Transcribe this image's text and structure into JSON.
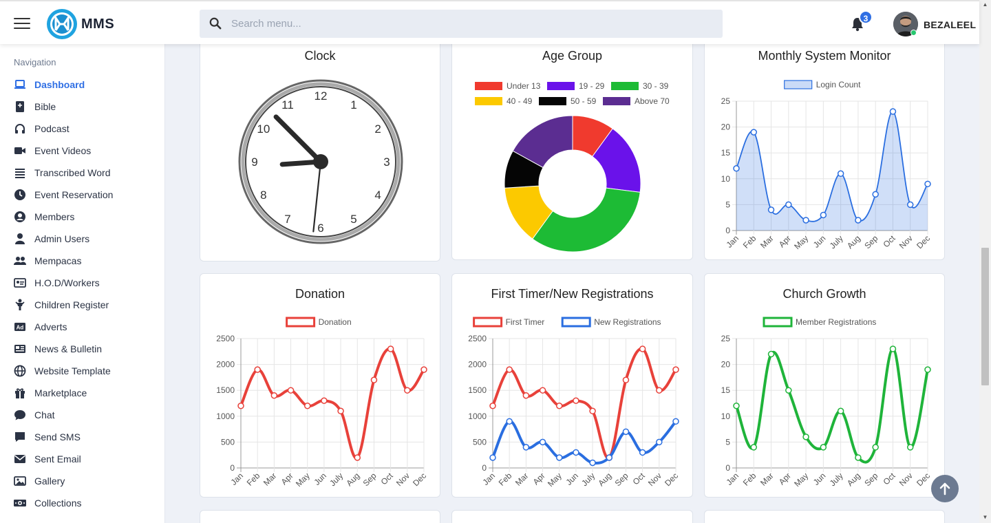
{
  "header": {
    "brand": "MMS",
    "search_placeholder": "Search menu...",
    "notification_count": "3",
    "username": "BEZALEEL"
  },
  "sidebar": {
    "heading": "Navigation",
    "items": [
      {
        "label": "Dashboard",
        "icon": "laptop-icon",
        "active": true
      },
      {
        "label": "Bible",
        "icon": "book-icon"
      },
      {
        "label": "Podcast",
        "icon": "headphones-icon"
      },
      {
        "label": "Event Videos",
        "icon": "video-icon"
      },
      {
        "label": "Transcribed Word",
        "icon": "list-icon"
      },
      {
        "label": "Event Reservation",
        "icon": "clock-icon"
      },
      {
        "label": "Members",
        "icon": "user-circle-icon"
      },
      {
        "label": "Admin Users",
        "icon": "user-icon"
      },
      {
        "label": "Mempacas",
        "icon": "users-icon"
      },
      {
        "label": "H.O.D/Workers",
        "icon": "id-card-icon"
      },
      {
        "label": "Children Register",
        "icon": "child-icon"
      },
      {
        "label": "Adverts",
        "icon": "ad-icon"
      },
      {
        "label": "News & Bulletin",
        "icon": "newspaper-icon"
      },
      {
        "label": "Website Template",
        "icon": "globe-icon"
      },
      {
        "label": "Marketplace",
        "icon": "gift-icon"
      },
      {
        "label": "Chat",
        "icon": "comment-icon"
      },
      {
        "label": "Send SMS",
        "icon": "sms-icon"
      },
      {
        "label": "Sent Email",
        "icon": "envelope-icon"
      },
      {
        "label": "Gallery",
        "icon": "image-icon"
      },
      {
        "label": "Collections",
        "icon": "money-icon"
      }
    ]
  },
  "colors": {
    "accent": "#2f6fe4",
    "red": "#e8413a",
    "blue": "#2a6ee0",
    "green": "#1fb43a"
  },
  "cards": {
    "clock": {
      "title": "Clock",
      "numbers": [
        "12",
        "1",
        "2",
        "3",
        "4",
        "5",
        "6",
        "7",
        "8",
        "9",
        "10",
        "11"
      ],
      "time": {
        "hour": 8,
        "minute": 52,
        "second": 31
      }
    },
    "age_group": {
      "title": "Age Group"
    },
    "monthly_monitor": {
      "title": "Monthly System Monitor"
    },
    "donation": {
      "title": "Donation"
    },
    "first_timer": {
      "title": "First Timer/New Registrations"
    },
    "church_growth": {
      "title": "Church Growth"
    }
  },
  "chart_data": [
    {
      "id": "age_group",
      "type": "pie",
      "title": "Age Group",
      "categories": [
        "Under 13",
        "19 - 29",
        "30 - 39",
        "40 - 49",
        "50 - 59",
        "Above 70"
      ],
      "values": [
        10,
        17,
        33,
        14,
        9,
        17
      ],
      "colors": [
        "#f03a2e",
        "#6a12ea",
        "#1dbb35",
        "#fcc900",
        "#050505",
        "#5b2d91"
      ]
    },
    {
      "id": "monthly_monitor",
      "type": "area",
      "title": "Monthly System Monitor",
      "categories": [
        "Jan",
        "Feb",
        "Mar",
        "Apr",
        "May",
        "Jun",
        "July",
        "Aug",
        "Sep",
        "Oct",
        "Nov",
        "Dec"
      ],
      "series": [
        {
          "name": "Login Count",
          "values": [
            12,
            19,
            4,
            5,
            2,
            3,
            11,
            2,
            7,
            23,
            5,
            9
          ],
          "color": "#2a6ee0"
        }
      ],
      "ylim": [
        0,
        25
      ],
      "yticks": [
        0,
        5,
        10,
        15,
        20,
        25
      ]
    },
    {
      "id": "donation",
      "type": "line",
      "title": "Donation",
      "categories": [
        "Jan",
        "Feb",
        "Mar",
        "Apr",
        "May",
        "Jun",
        "July",
        "Aug",
        "Sep",
        "Oct",
        "Nov",
        "Dec"
      ],
      "series": [
        {
          "name": "Donation",
          "values": [
            1200,
            1900,
            1400,
            1500,
            1200,
            1300,
            1100,
            200,
            1700,
            2300,
            1500,
            1900
          ],
          "color": "#e8413a"
        }
      ],
      "ylim": [
        0,
        2500
      ],
      "yticks": [
        0,
        500,
        1000,
        1500,
        2000,
        2500
      ]
    },
    {
      "id": "first_timer",
      "type": "line",
      "title": "First Timer/New Registrations",
      "categories": [
        "Jan",
        "Feb",
        "Mar",
        "Apr",
        "May",
        "Jun",
        "July",
        "Aug",
        "Sep",
        "Oct",
        "Nov",
        "Dec"
      ],
      "series": [
        {
          "name": "First Timer",
          "values": [
            1200,
            1900,
            1400,
            1500,
            1200,
            1300,
            1100,
            200,
            1700,
            2300,
            1500,
            1900
          ],
          "color": "#e8413a"
        },
        {
          "name": "New Registrations",
          "values": [
            200,
            900,
            400,
            500,
            200,
            300,
            100,
            200,
            700,
            300,
            500,
            900
          ],
          "color": "#2a6ee0"
        }
      ],
      "ylim": [
        0,
        2500
      ],
      "yticks": [
        0,
        500,
        1000,
        1500,
        2000,
        2500
      ]
    },
    {
      "id": "church_growth",
      "type": "line",
      "title": "Church Growth",
      "categories": [
        "Jan",
        "Feb",
        "Mar",
        "Apr",
        "May",
        "Jun",
        "July",
        "Aug",
        "Sep",
        "Oct",
        "Nov",
        "Dec"
      ],
      "series": [
        {
          "name": "Member Registrations",
          "values": [
            12,
            4,
            22,
            15,
            6,
            4,
            11,
            2,
            4,
            23,
            4,
            19
          ],
          "color": "#1fb43a"
        }
      ],
      "ylim": [
        0,
        25
      ],
      "yticks": [
        0,
        5,
        10,
        15,
        20,
        25
      ]
    }
  ]
}
